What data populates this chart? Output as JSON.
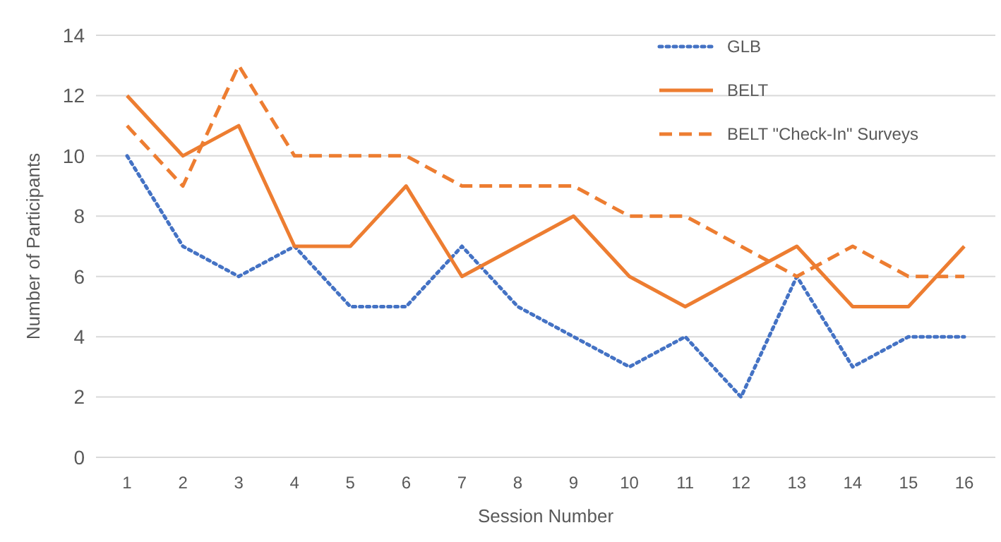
{
  "chart_data": {
    "type": "line",
    "xlabel": "Session Number",
    "ylabel": "Number of Participants",
    "categories": [
      "1",
      "2",
      "3",
      "4",
      "5",
      "6",
      "7",
      "8",
      "9",
      "10",
      "11",
      "12",
      "13",
      "14",
      "15",
      "16"
    ],
    "series": [
      {
        "name": "GLB",
        "color": "#4472c4",
        "line_style": "dotted",
        "values": [
          10,
          7,
          6,
          7,
          5,
          5,
          7,
          5,
          4,
          3,
          4,
          2,
          6,
          3,
          4,
          4
        ]
      },
      {
        "name": "BELT",
        "color": "#ed7d31",
        "line_style": "solid",
        "values": [
          12,
          10,
          11,
          7,
          7,
          9,
          6,
          7,
          8,
          6,
          5,
          6,
          7,
          5,
          5,
          7
        ]
      },
      {
        "name": "BELT \"Check-In\" Surveys",
        "color": "#ed7d31",
        "line_style": "dashed",
        "values": [
          11,
          9,
          13,
          10,
          10,
          10,
          9,
          9,
          9,
          8,
          8,
          7,
          6,
          7,
          6,
          6
        ]
      }
    ],
    "ylim": [
      0,
      14
    ],
    "yticks": [
      0,
      2,
      4,
      6,
      8,
      10,
      12,
      14
    ],
    "grid": "y",
    "legend": "top right",
    "marker": "none"
  }
}
